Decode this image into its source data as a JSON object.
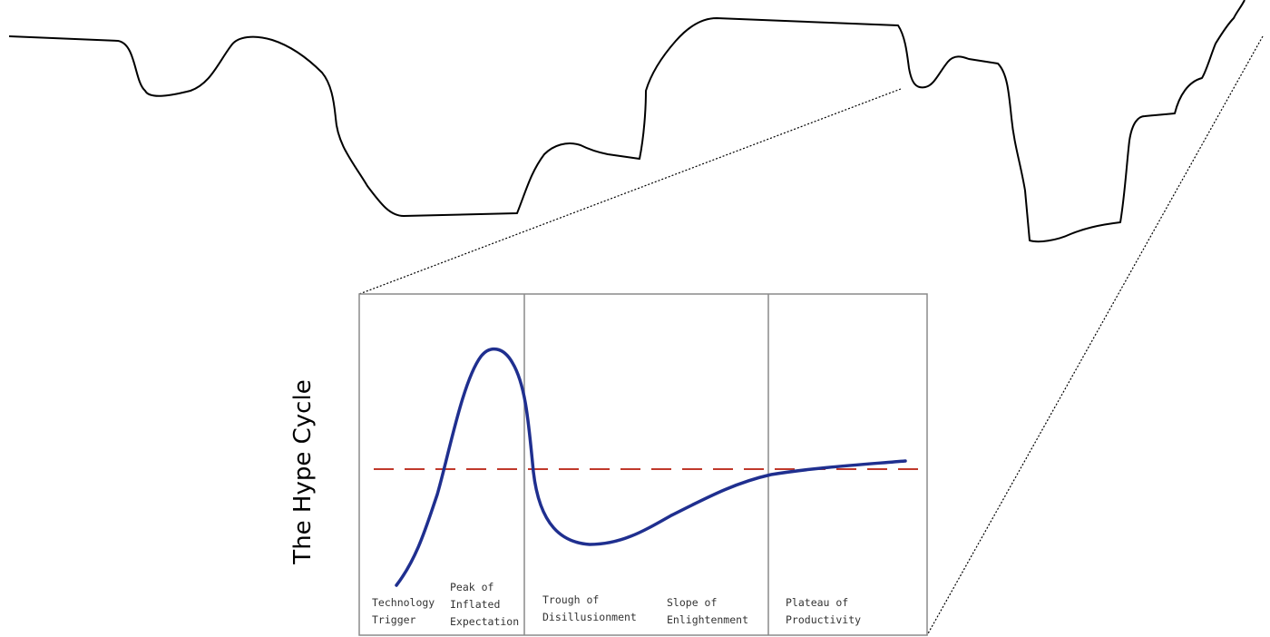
{
  "diagram": {
    "title": "The Hype Cycle",
    "phases": [
      {
        "lines": [
          "Technology",
          "Trigger"
        ]
      },
      {
        "lines": [
          "Peak of",
          "Inflated",
          "Expectation"
        ]
      },
      {
        "lines": [
          "Trough of",
          "Disillusionment"
        ]
      },
      {
        "lines": [
          "Slope of",
          "Enlightenment"
        ]
      },
      {
        "lines": [
          "Plateau of",
          "Productivity"
        ]
      }
    ],
    "colors": {
      "line": "#000000",
      "curve": "#1f2f8f",
      "threshold": "#c0392b",
      "frame": "#8a8a8a"
    }
  }
}
